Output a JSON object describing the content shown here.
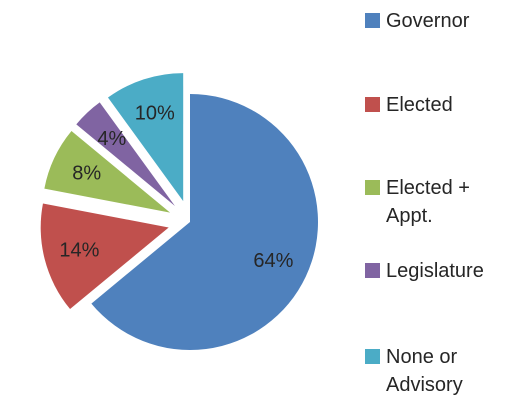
{
  "chart_data": {
    "type": "pie",
    "exploded": true,
    "show_percent_labels": true,
    "legend_position": "right",
    "slices": [
      {
        "name": "Governor",
        "legend_lines": [
          "Governor"
        ],
        "value": 64,
        "label": "64%",
        "color": "#4F81BD"
      },
      {
        "name": "Elected",
        "legend_lines": [
          "Elected"
        ],
        "value": 14,
        "label": "14%",
        "color": "#C0504D"
      },
      {
        "name": "Elected + Appt.",
        "legend_lines": [
          "Elected +",
          "Appt."
        ],
        "value": 8,
        "label": "8%",
        "color": "#9BBB59"
      },
      {
        "name": "Legislature",
        "legend_lines": [
          "Legislature"
        ],
        "value": 4,
        "label": "4%",
        "color": "#8064A2"
      },
      {
        "name": "None or Advisory",
        "legend_lines": [
          "None or",
          "Advisory"
        ],
        "value": 10,
        "label": "10%",
        "color": "#4BACC6"
      }
    ]
  }
}
